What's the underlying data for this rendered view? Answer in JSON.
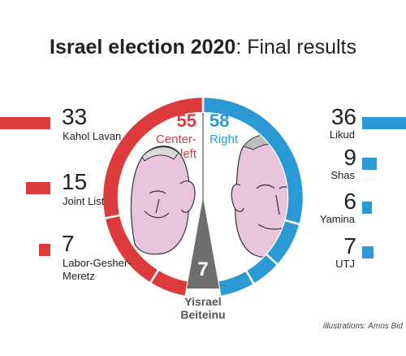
{
  "title": {
    "bold": "Israel election 2020",
    "rest": ": Final results"
  },
  "credit": "illustrations: Amos Bid",
  "colors": {
    "center_left": "#dd3b3b",
    "right": "#2b9ad4",
    "yisrael": "#6e6e6e"
  },
  "chart_data": {
    "type": "bar",
    "title": "Israel election 2020: Final results",
    "blocs": [
      {
        "name": "Center-left",
        "seats": 55,
        "label_lines": [
          "Center-",
          "left"
        ]
      },
      {
        "name": "Right",
        "seats": 58,
        "label_lines": [
          "Right"
        ]
      },
      {
        "name": "Yisrael Beiteinu",
        "seats": 7,
        "label_lines": [
          "Yisrael",
          "Beiteinu"
        ]
      }
    ],
    "left_parties": [
      {
        "seats": 33,
        "lines": [
          "Kahol Lavan"
        ]
      },
      {
        "seats": 15,
        "lines": [
          "Joint List"
        ]
      },
      {
        "seats": 7,
        "lines": [
          "Labor-Gesher-",
          "Meretz"
        ]
      }
    ],
    "right_parties": [
      {
        "seats": 36,
        "lines": [
          "Likud"
        ]
      },
      {
        "seats": 9,
        "lines": [
          "Shas"
        ]
      },
      {
        "seats": 6,
        "lines": [
          "Yamina"
        ]
      },
      {
        "seats": 7,
        "lines": [
          "UTJ"
        ]
      }
    ]
  }
}
